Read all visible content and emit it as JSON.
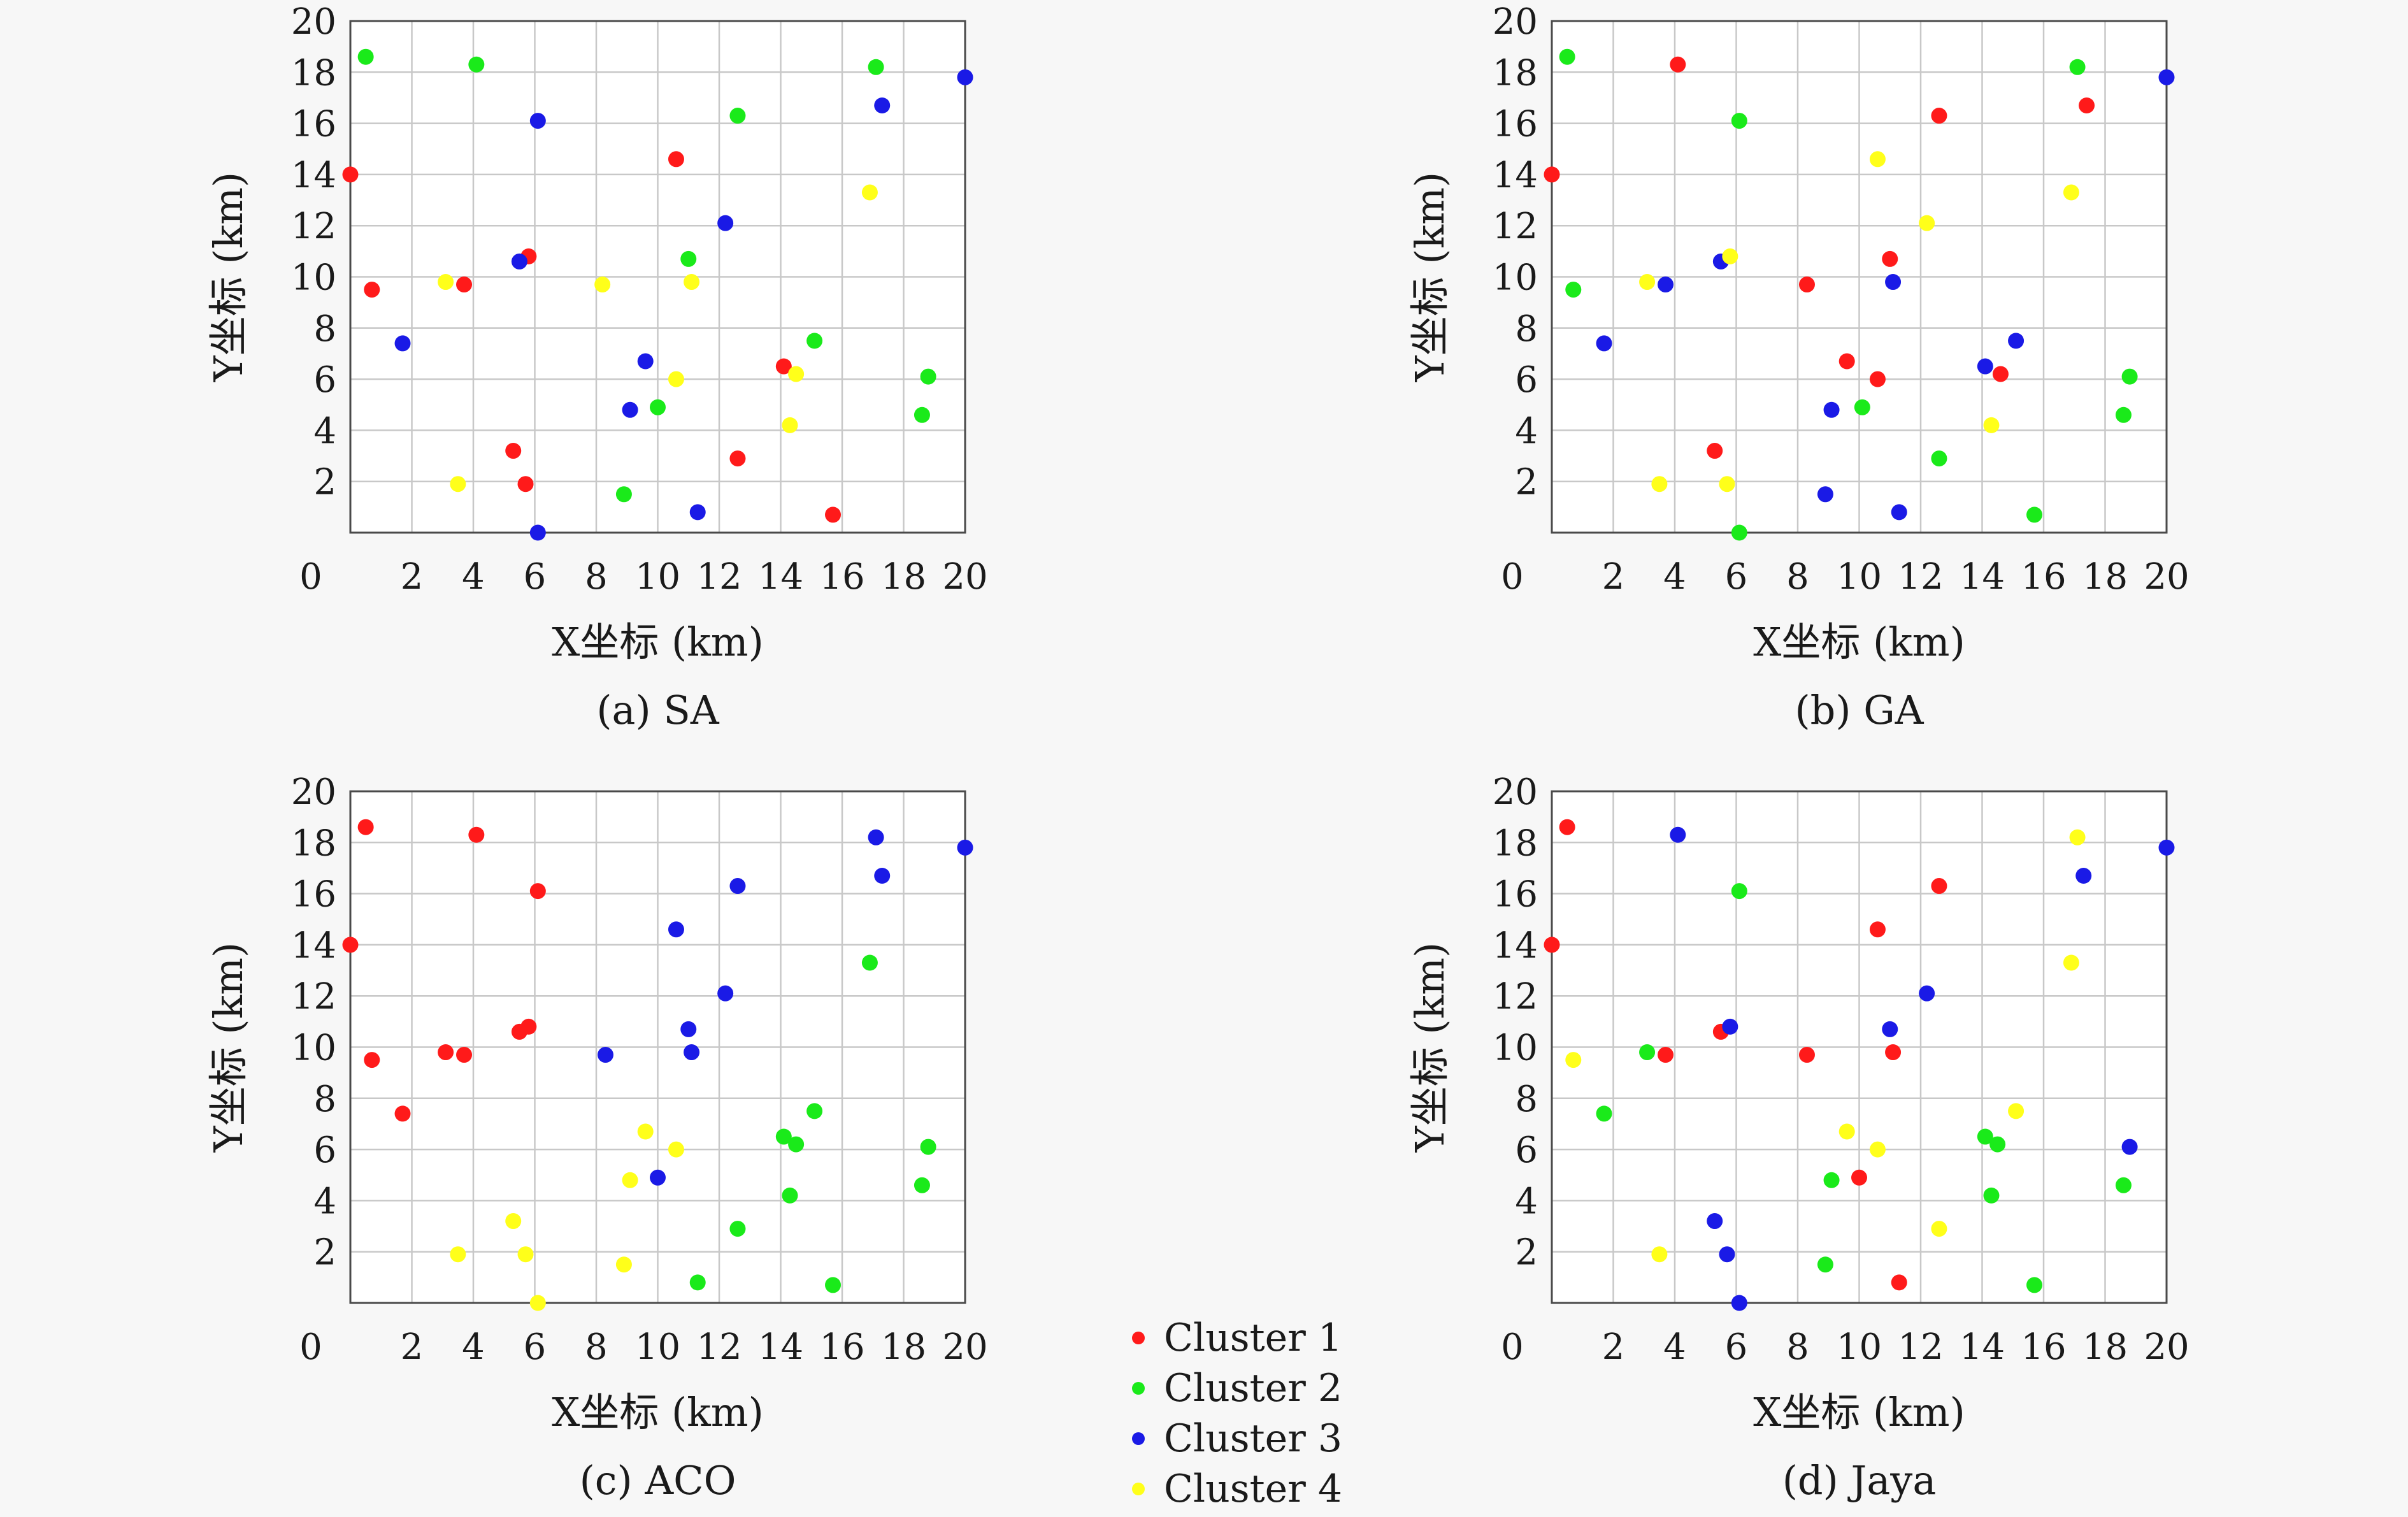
{
  "chart_data": [
    {
      "type": "scatter",
      "caption": "(a) SA",
      "xlabel": "X坐标 (km)",
      "ylabel": "Y坐标 (km)",
      "xlim": [
        0,
        20
      ],
      "ylim": [
        0,
        20
      ],
      "xticks": [
        "0",
        "2",
        "4",
        "6",
        "8",
        "10",
        "12",
        "14",
        "16",
        "18",
        "20"
      ],
      "yticks": [
        "2",
        "4",
        "6",
        "8",
        "10",
        "12",
        "14",
        "16",
        "18",
        "20"
      ],
      "grid": true,
      "series": [
        {
          "name": "Cluster 1",
          "color": "#ff1a1a",
          "points": [
            [
              0,
              14
            ],
            [
              0.7,
              9.5
            ],
            [
              3.7,
              9.7
            ],
            [
              5.8,
              10.8
            ],
            [
              10.6,
              14.6
            ],
            [
              5.3,
              3.2
            ],
            [
              5.7,
              1.9
            ],
            [
              12.6,
              2.9
            ],
            [
              14.1,
              6.5
            ],
            [
              15.7,
              0.7
            ]
          ]
        },
        {
          "name": "Cluster 2",
          "color": "#1aea1a",
          "points": [
            [
              0.5,
              18.6
            ],
            [
              4.1,
              18.3
            ],
            [
              12.6,
              16.3
            ],
            [
              17.1,
              18.2
            ],
            [
              11,
              10.7
            ],
            [
              15.1,
              7.5
            ],
            [
              18.8,
              6.1
            ],
            [
              18.6,
              4.6
            ],
            [
              10,
              4.9
            ],
            [
              8.9,
              1.5
            ]
          ]
        },
        {
          "name": "Cluster 3",
          "color": "#1a1ae6",
          "points": [
            [
              1.7,
              7.4
            ],
            [
              5.5,
              10.6
            ],
            [
              6.1,
              16.1
            ],
            [
              12.2,
              12.1
            ],
            [
              17.3,
              16.7
            ],
            [
              20,
              17.8
            ],
            [
              9.6,
              6.7
            ],
            [
              9.1,
              4.8
            ],
            [
              11.3,
              0.8
            ],
            [
              6.1,
              0
            ]
          ]
        },
        {
          "name": "Cluster 4",
          "color": "#ffff1a",
          "points": [
            [
              3.1,
              9.8
            ],
            [
              3.5,
              1.9
            ],
            [
              8.2,
              9.7
            ],
            [
              11.1,
              9.8
            ],
            [
              10.6,
              6
            ],
            [
              14.5,
              6.2
            ],
            [
              14.3,
              4.2
            ],
            [
              16.9,
              13.3
            ]
          ]
        }
      ]
    },
    {
      "type": "scatter",
      "caption": "(b) GA",
      "xlabel": "X坐标 (km)",
      "ylabel": "Y坐标 (km)",
      "xlim": [
        0,
        20
      ],
      "ylim": [
        0,
        20
      ],
      "xticks": [
        "0",
        "2",
        "4",
        "6",
        "8",
        "10",
        "12",
        "14",
        "16",
        "18",
        "20"
      ],
      "yticks": [
        "2",
        "4",
        "6",
        "8",
        "10",
        "12",
        "14",
        "16",
        "18",
        "20"
      ],
      "grid": true,
      "series": [
        {
          "name": "Cluster 1",
          "color": "#ff1a1a",
          "points": [
            [
              0,
              14
            ],
            [
              4.1,
              18.3
            ],
            [
              12.6,
              16.3
            ],
            [
              17.4,
              16.7
            ],
            [
              11,
              10.7
            ],
            [
              8.3,
              9.7
            ],
            [
              9.6,
              6.7
            ],
            [
              10.6,
              6
            ],
            [
              14.6,
              6.2
            ],
            [
              5.3,
              3.2
            ]
          ]
        },
        {
          "name": "Cluster 2",
          "color": "#1aea1a",
          "points": [
            [
              0.5,
              18.6
            ],
            [
              0.7,
              9.5
            ],
            [
              6.1,
              16.1
            ],
            [
              17.1,
              18.2
            ],
            [
              18.8,
              6.1
            ],
            [
              18.6,
              4.6
            ],
            [
              10.1,
              4.9
            ],
            [
              12.6,
              2.9
            ],
            [
              15.7,
              0.7
            ],
            [
              6.1,
              0
            ]
          ]
        },
        {
          "name": "Cluster 3",
          "color": "#1a1ae6",
          "points": [
            [
              1.7,
              7.4
            ],
            [
              3.7,
              9.7
            ],
            [
              5.5,
              10.6
            ],
            [
              11.1,
              9.8
            ],
            [
              14.1,
              6.5
            ],
            [
              15.1,
              7.5
            ],
            [
              9.1,
              4.8
            ],
            [
              8.9,
              1.5
            ],
            [
              11.3,
              0.8
            ],
            [
              20,
              17.8
            ]
          ]
        },
        {
          "name": "Cluster 4",
          "color": "#ffff1a",
          "points": [
            [
              3.1,
              9.8
            ],
            [
              5.8,
              10.8
            ],
            [
              10.6,
              14.6
            ],
            [
              12.2,
              12.1
            ],
            [
              16.9,
              13.3
            ],
            [
              14.3,
              4.2
            ],
            [
              3.5,
              1.9
            ],
            [
              5.7,
              1.9
            ]
          ]
        }
      ]
    },
    {
      "type": "scatter",
      "caption": "(c) ACO",
      "xlabel": "X坐标 (km)",
      "ylabel": "Y坐标 (km)",
      "xlim": [
        0,
        20
      ],
      "ylim": [
        0,
        20
      ],
      "xticks": [
        "0",
        "2",
        "4",
        "6",
        "8",
        "10",
        "12",
        "14",
        "16",
        "18",
        "20"
      ],
      "yticks": [
        "2",
        "4",
        "6",
        "8",
        "10",
        "12",
        "14",
        "16",
        "18",
        "20"
      ],
      "grid": true,
      "series": [
        {
          "name": "Cluster 1",
          "color": "#ff1a1a",
          "points": [
            [
              0,
              14
            ],
            [
              0.5,
              18.6
            ],
            [
              4.1,
              18.3
            ],
            [
              6.1,
              16.1
            ],
            [
              0.7,
              9.5
            ],
            [
              1.7,
              7.4
            ],
            [
              3.1,
              9.8
            ],
            [
              3.7,
              9.7
            ],
            [
              5.5,
              10.6
            ],
            [
              5.8,
              10.8
            ]
          ]
        },
        {
          "name": "Cluster 2",
          "color": "#1aea1a",
          "points": [
            [
              16.9,
              13.3
            ],
            [
              15.1,
              7.5
            ],
            [
              14.1,
              6.5
            ],
            [
              14.5,
              6.2
            ],
            [
              14.3,
              4.2
            ],
            [
              18.8,
              6.1
            ],
            [
              18.6,
              4.6
            ],
            [
              12.6,
              2.9
            ],
            [
              11.3,
              0.8
            ],
            [
              15.7,
              0.7
            ]
          ]
        },
        {
          "name": "Cluster 3",
          "color": "#1a1ae6",
          "points": [
            [
              17.1,
              18.2
            ],
            [
              17.3,
              16.7
            ],
            [
              20,
              17.8
            ],
            [
              12.6,
              16.3
            ],
            [
              10.6,
              14.6
            ],
            [
              12.2,
              12.1
            ],
            [
              11,
              10.7
            ],
            [
              11.1,
              9.8
            ],
            [
              8.3,
              9.7
            ],
            [
              10,
              4.9
            ]
          ]
        },
        {
          "name": "Cluster 4",
          "color": "#ffff1a",
          "points": [
            [
              9.6,
              6.7
            ],
            [
              10.6,
              6
            ],
            [
              9.1,
              4.8
            ],
            [
              5.3,
              3.2
            ],
            [
              3.5,
              1.9
            ],
            [
              5.7,
              1.9
            ],
            [
              8.9,
              1.5
            ],
            [
              6.1,
              0
            ]
          ]
        }
      ]
    },
    {
      "type": "scatter",
      "caption": "(d) Jaya",
      "xlabel": "X坐标 (km)",
      "ylabel": "Y坐标 (km)",
      "xlim": [
        0,
        20
      ],
      "ylim": [
        0,
        20
      ],
      "xticks": [
        "0",
        "2",
        "4",
        "6",
        "8",
        "10",
        "12",
        "14",
        "16",
        "18",
        "20"
      ],
      "yticks": [
        "2",
        "4",
        "6",
        "8",
        "10",
        "12",
        "14",
        "16",
        "18",
        "20"
      ],
      "grid": true,
      "series": [
        {
          "name": "Cluster 1",
          "color": "#ff1a1a",
          "points": [
            [
              0,
              14
            ],
            [
              0.5,
              18.6
            ],
            [
              3.7,
              9.7
            ],
            [
              5.5,
              10.6
            ],
            [
              8.3,
              9.7
            ],
            [
              10.6,
              14.6
            ],
            [
              11.1,
              9.8
            ],
            [
              12.6,
              16.3
            ],
            [
              10,
              4.9
            ],
            [
              11.3,
              0.8
            ]
          ]
        },
        {
          "name": "Cluster 2",
          "color": "#1aea1a",
          "points": [
            [
              6.1,
              16.1
            ],
            [
              3.1,
              9.8
            ],
            [
              1.7,
              7.4
            ],
            [
              9.1,
              4.8
            ],
            [
              8.9,
              1.5
            ],
            [
              14.1,
              6.5
            ],
            [
              14.5,
              6.2
            ],
            [
              14.3,
              4.2
            ],
            [
              18.6,
              4.6
            ],
            [
              15.7,
              0.7
            ]
          ]
        },
        {
          "name": "Cluster 3",
          "color": "#1a1ae6",
          "points": [
            [
              4.1,
              18.3
            ],
            [
              5.8,
              10.8
            ],
            [
              11,
              10.7
            ],
            [
              12.2,
              12.1
            ],
            [
              17.3,
              16.7
            ],
            [
              20,
              17.8
            ],
            [
              18.8,
              6.1
            ],
            [
              5.3,
              3.2
            ],
            [
              5.7,
              1.9
            ],
            [
              6.1,
              0
            ]
          ]
        },
        {
          "name": "Cluster 4",
          "color": "#ffff1a",
          "points": [
            [
              0.7,
              9.5
            ],
            [
              3.5,
              1.9
            ],
            [
              9.6,
              6.7
            ],
            [
              10.6,
              6
            ],
            [
              12.6,
              2.9
            ],
            [
              15.1,
              7.5
            ],
            [
              16.9,
              13.3
            ],
            [
              17.1,
              18.2
            ]
          ]
        }
      ]
    }
  ],
  "legend": {
    "placement": "bottom-center",
    "items": [
      {
        "label": "Cluster 1",
        "color": "#ff1a1a"
      },
      {
        "label": "Cluster 2",
        "color": "#1aea1a"
      },
      {
        "label": "Cluster 3",
        "color": "#1a1ae6"
      },
      {
        "label": "Cluster 4",
        "color": "#ffff1a"
      }
    ]
  }
}
